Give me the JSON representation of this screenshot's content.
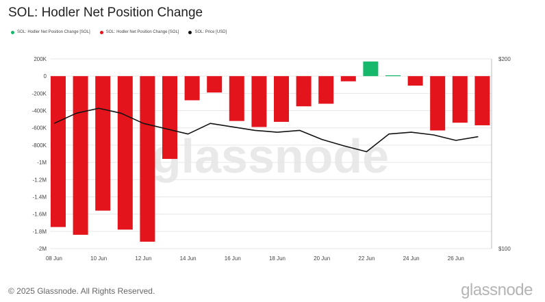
{
  "header": {
    "title": "SOL: Hodler Net Position Change"
  },
  "legend": [
    {
      "label": "SOL: Hodler Net Position Change [SOL]",
      "color": "#16b86b"
    },
    {
      "label": "SOL: Hodler Net Position Change [SOL]",
      "color": "#e3141c"
    },
    {
      "label": "SOL: Price [USD]",
      "color": "#111111"
    }
  ],
  "footer": {
    "copyright": "© 2025 Glassnode. All Rights Reserved.",
    "brand": "glassnode"
  },
  "watermark": "glassnode",
  "chart_data": {
    "type": "bar",
    "title": "SOL: Hodler Net Position Change",
    "x": [
      "08 Jun",
      "09 Jun",
      "10 Jun",
      "11 Jun",
      "12 Jun",
      "13 Jun",
      "14 Jun",
      "15 Jun",
      "16 Jun",
      "17 Jun",
      "18 Jun",
      "19 Jun",
      "20 Jun",
      "21 Jun",
      "22 Jun",
      "23 Jun",
      "24 Jun",
      "25 Jun",
      "26 Jun",
      "27 Jun"
    ],
    "x_tick_labels": [
      "08 Jun",
      "10 Jun",
      "12 Jun",
      "14 Jun",
      "16 Jun",
      "18 Jun",
      "20 Jun",
      "22 Jun",
      "24 Jun",
      "26 Jun"
    ],
    "series": [
      {
        "name": "SOL: Hodler Net Position Change [SOL]",
        "type": "bar",
        "values": [
          -1750000,
          -1840000,
          -1560000,
          -1780000,
          -1920000,
          -960000,
          -280000,
          -190000,
          -520000,
          -590000,
          -530000,
          -350000,
          -320000,
          -60000,
          170000,
          10000,
          -110000,
          -630000,
          -540000,
          -570000
        ]
      },
      {
        "name": "SOL: Price [USD]",
        "type": "line",
        "axis": "right",
        "values": [
          158,
          164,
          167,
          164,
          158,
          155,
          152,
          158,
          156,
          154,
          153,
          154,
          149,
          145.5,
          142.5,
          152,
          153,
          151.5,
          148.5,
          150.5
        ]
      }
    ],
    "y_left": {
      "ticks": [
        200000,
        0,
        -200000,
        -400000,
        -600000,
        -800000,
        -1000000,
        -1200000,
        -1400000,
        -1600000,
        -1800000,
        -2000000
      ],
      "tick_labels": [
        "200K",
        "0",
        "-200K",
        "-400K",
        "-600K",
        "-800K",
        "-1M",
        "-1.2M",
        "-1.4M",
        "-1.6M",
        "-1.8M",
        "-2M"
      ],
      "range": [
        -2000000,
        200000
      ]
    },
    "y_right": {
      "ticks": [
        200,
        100
      ],
      "tick_labels": [
        "$200",
        "$100"
      ],
      "scale": "log",
      "range": [
        100,
        200
      ]
    },
    "colors": {
      "positive": "#16b86b",
      "negative": "#e3141c",
      "price": "#111111"
    },
    "grid": true
  }
}
